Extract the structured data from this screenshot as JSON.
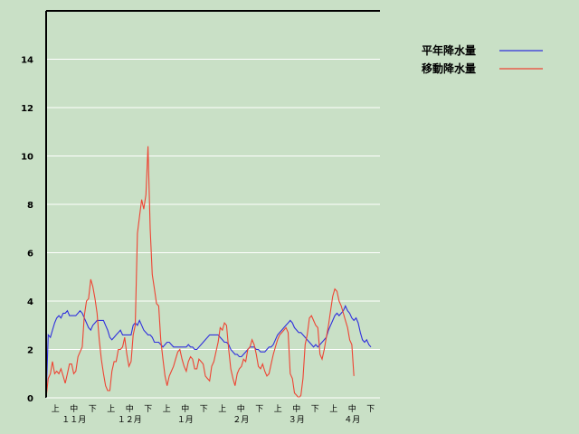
{
  "chart_data": {
    "type": "line",
    "ylim": [
      0,
      16
    ],
    "yticks": [
      0,
      2,
      4,
      6,
      8,
      10,
      12,
      14
    ],
    "grid": true,
    "legend_position": "top-right",
    "x_period_labels": [
      "上",
      "中",
      "下",
      "上",
      "中",
      "下",
      "上",
      "中",
      "下",
      "上",
      "中",
      "下",
      "上",
      "中",
      "下",
      "上",
      "中",
      "下"
    ],
    "x_month_labels": [
      "１１月",
      "１２月",
      "１月",
      "２月",
      "３月",
      "４月"
    ],
    "series": [
      {
        "name": "平年降水量",
        "color": "#3030dd",
        "values": [
          0,
          2.6,
          2.5,
          2.8,
          3.1,
          3.3,
          3.4,
          3.3,
          3.5,
          3.5,
          3.6,
          3.4,
          3.4,
          3.4,
          3.4,
          3.5,
          3.6,
          3.5,
          3.3,
          3.1,
          2.9,
          2.8,
          3,
          3.1,
          3.2,
          3.2,
          3.2,
          3.2,
          3,
          2.8,
          2.5,
          2.4,
          2.5,
          2.6,
          2.7,
          2.8,
          2.6,
          2.6,
          2.6,
          2.6,
          2.6,
          3,
          3.1,
          3,
          3.2,
          3,
          2.8,
          2.7,
          2.6,
          2.6,
          2.5,
          2.3,
          2.3,
          2.3,
          2.2,
          2.1,
          2.2,
          2.3,
          2.3,
          2.2,
          2.1,
          2.1,
          2.1,
          2.1,
          2.1,
          2.1,
          2.1,
          2.2,
          2.1,
          2.1,
          2,
          2,
          2.1,
          2.2,
          2.3,
          2.4,
          2.5,
          2.6,
          2.6,
          2.6,
          2.6,
          2.6,
          2.5,
          2.4,
          2.3,
          2.3,
          2.2,
          2,
          1.9,
          1.8,
          1.8,
          1.7,
          1.7,
          1.8,
          1.9,
          2,
          2.1,
          2.1,
          2.1,
          2,
          2,
          1.9,
          1.9,
          1.9,
          2,
          2.1,
          2.1,
          2.2,
          2.4,
          2.6,
          2.7,
          2.8,
          2.9,
          3,
          3.1,
          3.2,
          3.1,
          2.9,
          2.8,
          2.7,
          2.7,
          2.6,
          2.5,
          2.4,
          2.3,
          2.2,
          2.1,
          2.2,
          2.1,
          2.2,
          2.3,
          2.4,
          2.5,
          2.8,
          3,
          3.2,
          3.4,
          3.5,
          3.4,
          3.5,
          3.6,
          3.8,
          3.6,
          3.5,
          3.3,
          3.2,
          3.3,
          3.1,
          2.7,
          2.4,
          2.3,
          2.4,
          2.2,
          2.1
        ],
        "x_start": 0
      },
      {
        "name": "移動降水量",
        "color": "#ee4433",
        "values": [
          0,
          0.8,
          1,
          1.5,
          1,
          1.1,
          1,
          1.2,
          0.9,
          0.6,
          1,
          1.4,
          1.4,
          1,
          1.1,
          1.7,
          1.9,
          2.1,
          3.4,
          4,
          4.1,
          4.9,
          4.6,
          4.1,
          3.5,
          2.4,
          1.6,
          1,
          0.5,
          0.3,
          0.3,
          1.1,
          1.5,
          1.5,
          2,
          2,
          2.1,
          2.5,
          1.8,
          1.3,
          1.5,
          2.6,
          3,
          6.8,
          7.5,
          8.2,
          7.8,
          8.4,
          10.4,
          7,
          5.1,
          4.5,
          3.9,
          3.8,
          2.4,
          1.6,
          0.9,
          0.5,
          0.9,
          1.1,
          1.3,
          1.6,
          1.9,
          2,
          1.6,
          1.3,
          1.1,
          1.5,
          1.7,
          1.6,
          1.2,
          1.2,
          1.6,
          1.5,
          1.4,
          0.9,
          0.8,
          0.7,
          1.3,
          1.5,
          1.9,
          2.3,
          2.9,
          2.8,
          3.1,
          3,
          2,
          1.2,
          0.8,
          0.5,
          1,
          1.2,
          1.3,
          1.6,
          1.5,
          2,
          2.1,
          2.4,
          2.2,
          1.8,
          1.3,
          1.2,
          1.4,
          1.1,
          0.9,
          1,
          1.4,
          1.8,
          2.1,
          2.4,
          2.6,
          2.7,
          2.8,
          2.9,
          2.7,
          1,
          0.8,
          0.2,
          0.1,
          0,
          0.1,
          0.8,
          2.2,
          2.6,
          3.3,
          3.4,
          3.2,
          3,
          2.9,
          1.8,
          1.6,
          2,
          2.5,
          3,
          3.6,
          4.2,
          4.5,
          4.4,
          4,
          3.8,
          3.5,
          3.2,
          2.9,
          2.4,
          2.2,
          0.9
        ]
      }
    ]
  },
  "legend": [
    {
      "label": "平年降水量",
      "color": "#3030dd"
    },
    {
      "label": "移動降水量",
      "color": "#ee4433"
    }
  ]
}
